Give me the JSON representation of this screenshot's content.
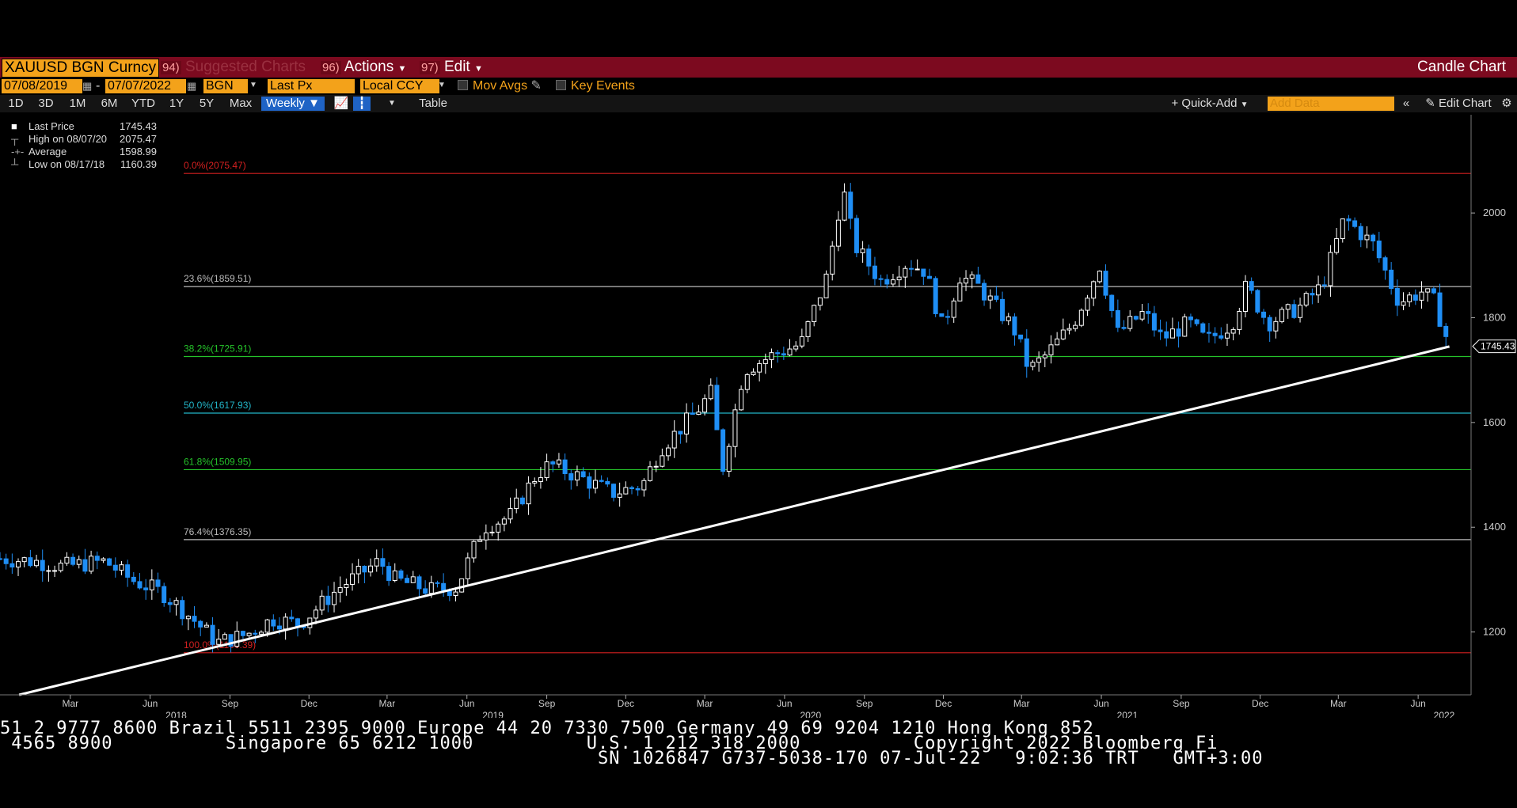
{
  "header": {
    "ticker": "XAUUSD BGN Curncy",
    "suggested_num": "94)",
    "suggested_label": "Suggested Charts",
    "actions_num": "96)",
    "actions_label": "Actions",
    "edit_num": "97)",
    "edit_label": "Edit",
    "chart_title": "Candle Chart"
  },
  "controls": {
    "start_date": "07/08/2019",
    "date_sep": "-",
    "end_date": "07/07/2022",
    "source": "BGN",
    "field": "Last Px",
    "currency": "Local CCY",
    "mov_avgs": "Mov Avgs",
    "key_events": "Key Events"
  },
  "ranges": {
    "items": [
      "1D",
      "3D",
      "1M",
      "6M",
      "YTD",
      "1Y",
      "5Y",
      "Max"
    ],
    "period": "Weekly",
    "table_label": "Table",
    "quick_add": "+ Quick-Add",
    "add_data_placeholder": "Add Data",
    "edit_chart": "Edit Chart"
  },
  "legend": {
    "last_label": "Last Price",
    "last_value": "1745.43",
    "high_label": "High on 08/07/20",
    "high_value": "2075.47",
    "avg_label": "Average",
    "avg_value": "1598.99",
    "low_label": "Low on 08/17/18",
    "low_value": "1160.39"
  },
  "chart_data": {
    "type": "candlestick",
    "title": "",
    "ylim": [
      1080,
      2180
    ],
    "y_ticks": [
      1200,
      1400,
      1600,
      1800,
      2000
    ],
    "last_price_label": "1745.43",
    "last_price": 1745.43,
    "grid": false,
    "fib_levels": [
      {
        "label": "0.0%(2075.47)",
        "value": 2075.47,
        "color": "#d42020"
      },
      {
        "label": "23.6%(1859.51)",
        "value": 1859.51,
        "color": "#bbbbbb"
      },
      {
        "label": "38.2%(1725.91)",
        "value": 1725.91,
        "color": "#25c22a"
      },
      {
        "label": "50.0%(1617.93)",
        "value": 1617.93,
        "color": "#22b5c8"
      },
      {
        "label": "61.8%(1509.95)",
        "value": 1509.95,
        "color": "#25c22a"
      },
      {
        "label": "76.4%(1376.35)",
        "value": 1376.35,
        "color": "#bbbbbb"
      },
      {
        "label": "100.0%(1160.39)",
        "value": 1160.39,
        "color": "#d42020"
      }
    ],
    "trendline": {
      "start": [
        "2018-01-01",
        1080
      ],
      "end": [
        "2022-07-07",
        1745
      ]
    },
    "month_ticks": [
      {
        "date": "2018-03-01",
        "label": "Mar"
      },
      {
        "date": "2018-06-01",
        "label": "Jun"
      },
      {
        "date": "2018-09-01",
        "label": "Sep"
      },
      {
        "date": "2018-12-01",
        "label": "Dec"
      },
      {
        "date": "2019-03-01",
        "label": "Mar"
      },
      {
        "date": "2019-06-01",
        "label": "Jun"
      },
      {
        "date": "2019-09-01",
        "label": "Sep"
      },
      {
        "date": "2019-12-01",
        "label": "Dec"
      },
      {
        "date": "2020-03-01",
        "label": "Mar"
      },
      {
        "date": "2020-06-01",
        "label": "Jun"
      },
      {
        "date": "2020-09-01",
        "label": "Sep"
      },
      {
        "date": "2020-12-01",
        "label": "Dec"
      },
      {
        "date": "2021-03-01",
        "label": "Mar"
      },
      {
        "date": "2021-06-01",
        "label": "Jun"
      },
      {
        "date": "2021-09-01",
        "label": "Sep"
      },
      {
        "date": "2021-12-01",
        "label": "Dec"
      },
      {
        "date": "2022-03-01",
        "label": "Mar"
      },
      {
        "date": "2022-06-01",
        "label": "Jun"
      }
    ],
    "year_ticks": [
      {
        "date": "2018-07-01",
        "label": "2018"
      },
      {
        "date": "2019-07-01",
        "label": "2019"
      },
      {
        "date": "2020-07-01",
        "label": "2020"
      },
      {
        "date": "2021-07-01",
        "label": "2021"
      },
      {
        "date": "2022-07-01",
        "label": "2022"
      }
    ],
    "xlim": [
      "2017-12-10",
      "2022-08-01"
    ],
    "weekly_close_path": [
      [
        "2017-12-10",
        1340
      ],
      [
        "2018-01-20",
        1335
      ],
      [
        "2018-02-20",
        1325
      ],
      [
        "2018-04-10",
        1335
      ],
      [
        "2018-05-10",
        1300
      ],
      [
        "2018-06-15",
        1275
      ],
      [
        "2018-07-20",
        1225
      ],
      [
        "2018-08-17",
        1180
      ],
      [
        "2018-09-20",
        1195
      ],
      [
        "2018-10-20",
        1225
      ],
      [
        "2018-11-20",
        1215
      ],
      [
        "2019-01-05",
        1285
      ],
      [
        "2019-02-20",
        1335
      ],
      [
        "2019-03-10",
        1300
      ],
      [
        "2019-04-20",
        1280
      ],
      [
        "2019-05-20",
        1285
      ],
      [
        "2019-06-20",
        1400
      ],
      [
        "2019-07-20",
        1420
      ],
      [
        "2019-08-20",
        1500
      ],
      [
        "2019-09-05",
        1520
      ],
      [
        "2019-10-10",
        1495
      ],
      [
        "2019-11-15",
        1465
      ],
      [
        "2019-12-20",
        1480
      ],
      [
        "2020-01-10",
        1550
      ],
      [
        "2020-02-20",
        1620
      ],
      [
        "2020-03-10",
        1660
      ],
      [
        "2020-03-20",
        1500
      ],
      [
        "2020-04-15",
        1700
      ],
      [
        "2020-05-20",
        1730
      ],
      [
        "2020-06-20",
        1750
      ],
      [
        "2020-07-20",
        1880
      ],
      [
        "2020-08-07",
        2050
      ],
      [
        "2020-08-20",
        1940
      ],
      [
        "2020-09-20",
        1870
      ],
      [
        "2020-10-20",
        1905
      ],
      [
        "2020-11-10",
        1890
      ],
      [
        "2020-11-30",
        1780
      ],
      [
        "2020-12-20",
        1880
      ],
      [
        "2021-01-10",
        1860
      ],
      [
        "2021-02-20",
        1780
      ],
      [
        "2021-03-10",
        1700
      ],
      [
        "2021-03-30",
        1730
      ],
      [
        "2021-04-30",
        1790
      ],
      [
        "2021-05-30",
        1900
      ],
      [
        "2021-06-20",
        1770
      ],
      [
        "2021-07-20",
        1810
      ],
      [
        "2021-08-10",
        1760
      ],
      [
        "2021-09-10",
        1790
      ],
      [
        "2021-09-30",
        1755
      ],
      [
        "2021-10-30",
        1790
      ],
      [
        "2021-11-15",
        1860
      ],
      [
        "2021-12-10",
        1790
      ],
      [
        "2022-01-15",
        1820
      ],
      [
        "2022-02-10",
        1860
      ],
      [
        "2022-03-08",
        1990
      ],
      [
        "2022-04-10",
        1940
      ],
      [
        "2022-05-10",
        1830
      ],
      [
        "2022-06-05",
        1850
      ],
      [
        "2022-06-20",
        1830
      ],
      [
        "2022-07-07",
        1745
      ]
    ]
  },
  "footer": {
    "line1": "51 2 9777 8600 Brazil 5511 2395 9000 Europe 44 20 7330 7500 Germany 49 69 9204 1210 Hong Kong 852",
    "line2": " 4565 8900          Singapore 65 6212 1000          U.S. 1 212 318 2000          Copyright 2022 Bloomberg Fi",
    "line3": "SN 1026847 G737-5038-170 07-Jul-22   9:02:36 TRT   GMT+3:00"
  },
  "colors": {
    "up_candle": "#ffffff",
    "down_candle": "#1f8ef5",
    "header_bg": "#7c0a1f",
    "accent": "#f3a21a"
  }
}
